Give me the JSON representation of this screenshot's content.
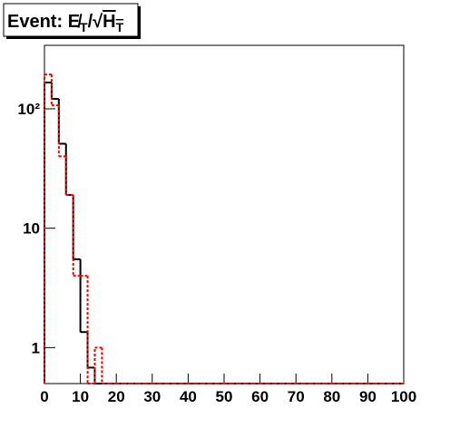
{
  "chart_data": {
    "type": "step_histogram",
    "title": [
      {
        "text": "Event: "
      },
      {
        "text": "E̸"
      },
      {
        "text": "T",
        "sub": true
      },
      {
        "text": "/√"
      },
      {
        "text": "H",
        "over": true
      },
      {
        "text": "T",
        "sub": true,
        "over": true
      }
    ],
    "bins": [
      0,
      2,
      4,
      6,
      8,
      10,
      12,
      14,
      16,
      18,
      20,
      22,
      24,
      26,
      28,
      30,
      32,
      34,
      36,
      38,
      40,
      42,
      44,
      46,
      48,
      50,
      52,
      54,
      56,
      58,
      60,
      62,
      64,
      66,
      68,
      70,
      72,
      74,
      76,
      78,
      80,
      82,
      84,
      86,
      88,
      90,
      92,
      94,
      96,
      98,
      100
    ],
    "series": [
      {
        "color": "#000000",
        "dashed": false,
        "values": [
          166,
          121,
          51,
          19,
          5.5,
          1.35,
          0.68,
          0,
          0,
          0,
          0,
          0,
          0,
          0,
          0,
          0,
          0,
          0,
          0,
          0,
          0,
          0,
          0,
          0,
          0,
          0,
          0,
          0,
          0,
          0,
          0,
          0,
          0,
          0,
          0,
          0,
          0,
          0,
          0,
          0,
          0,
          0,
          0,
          0,
          0,
          0,
          0,
          0,
          0,
          0
        ]
      },
      {
        "color": "#ff0000",
        "dashed": true,
        "values": [
          194,
          107,
          40,
          19,
          4,
          4,
          0,
          1,
          0,
          0,
          0,
          0,
          0,
          0,
          0,
          0,
          0,
          0,
          0,
          0,
          0,
          0,
          0,
          0,
          0,
          0,
          0,
          0,
          0,
          0,
          0,
          0,
          0,
          0,
          0,
          0,
          0,
          0,
          0,
          0,
          0,
          0,
          0,
          0,
          0,
          0,
          0,
          0,
          0,
          0
        ]
      }
    ],
    "xlim": [
      0,
      100
    ],
    "xticks": [
      0,
      10,
      20,
      30,
      40,
      50,
      60,
      70,
      80,
      90,
      100
    ],
    "ylim": [
      0.5,
      340
    ],
    "log_y": true,
    "yticks": [
      1,
      10,
      {
        "value": 100,
        "label": "10²"
      }
    ]
  }
}
